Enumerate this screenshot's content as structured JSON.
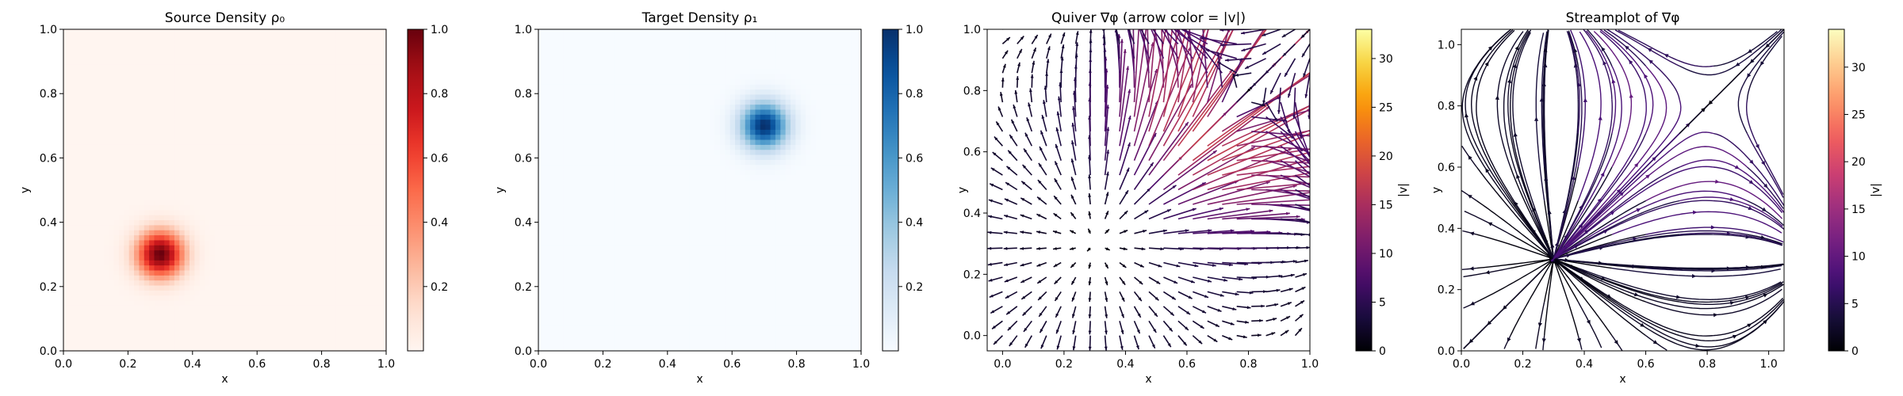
{
  "chart_data": [
    {
      "type": "heatmap",
      "title": "Source Density ρ₀",
      "xlabel": "x",
      "ylabel": "y",
      "xlim": [
        0,
        1
      ],
      "ylim": [
        0,
        1
      ],
      "xticks": [
        "0.0",
        "0.2",
        "0.4",
        "0.6",
        "0.8",
        "1.0"
      ],
      "yticks": [
        "0.0",
        "0.2",
        "0.4",
        "0.6",
        "0.8",
        "1.0"
      ],
      "colormap": "Reds",
      "gaussian": {
        "center": [
          0.3,
          0.3
        ],
        "sigma": 0.05,
        "peak": 1.0
      },
      "colorbar": {
        "label": "",
        "ticks": [
          "0.2",
          "0.4",
          "0.6",
          "0.8",
          "1.0"
        ],
        "tick_values": [
          0.2,
          0.4,
          0.6,
          0.8,
          1.0
        ],
        "range": [
          0.0,
          1.0
        ]
      }
    },
    {
      "type": "heatmap",
      "title": "Target Density ρ₁",
      "xlabel": "x",
      "ylabel": "y",
      "xlim": [
        0,
        1
      ],
      "ylim": [
        0,
        1
      ],
      "xticks": [
        "0.0",
        "0.2",
        "0.4",
        "0.6",
        "0.8",
        "1.0"
      ],
      "yticks": [
        "0.0",
        "0.2",
        "0.4",
        "0.6",
        "0.8",
        "1.0"
      ],
      "colormap": "Blues",
      "gaussian": {
        "center": [
          0.7,
          0.7
        ],
        "sigma": 0.05,
        "peak": 1.0
      },
      "colorbar": {
        "label": "",
        "ticks": [
          "0.2",
          "0.4",
          "0.6",
          "0.8",
          "1.0"
        ],
        "tick_values": [
          0.2,
          0.4,
          0.6,
          0.8,
          1.0
        ],
        "range": [
          0.0,
          1.0
        ]
      }
    },
    {
      "type": "quiver",
      "title": "Quiver ∇φ (arrow color = |v|)",
      "xlabel": "x",
      "ylabel": "y",
      "xlim": [
        -0.05,
        1.0
      ],
      "ylim": [
        -0.05,
        1.0
      ],
      "xticks": [
        "0.0",
        "0.2",
        "0.4",
        "0.6",
        "0.8",
        "1.0"
      ],
      "yticks": [
        "0.0",
        "0.2",
        "0.4",
        "0.6",
        "0.8",
        "1.0"
      ],
      "colormap": "inferno",
      "colorbar": {
        "label": "|v|",
        "ticks": [
          "0",
          "5",
          "10",
          "15",
          "20",
          "25",
          "30"
        ],
        "tick_values": [
          0,
          5,
          10,
          15,
          20,
          25,
          30
        ],
        "range": [
          0,
          33
        ]
      }
    },
    {
      "type": "streamplot",
      "title": "Streamplot of ∇φ",
      "xlabel": "x",
      "ylabel": "y",
      "xlim": [
        0,
        1.05
      ],
      "ylim": [
        0,
        1.05
      ],
      "xticks": [
        "0.0",
        "0.2",
        "0.4",
        "0.6",
        "0.8",
        "1.0"
      ],
      "yticks": [
        "0.0",
        "0.2",
        "0.4",
        "0.6",
        "0.8",
        "1.0"
      ],
      "colormap": "magma",
      "colorbar": {
        "label": "|v|",
        "ticks": [
          "0",
          "5",
          "10",
          "15",
          "20",
          "25",
          "30"
        ],
        "tick_values": [
          0,
          5,
          10,
          15,
          20,
          25,
          30
        ],
        "range": [
          0,
          34
        ]
      }
    }
  ]
}
